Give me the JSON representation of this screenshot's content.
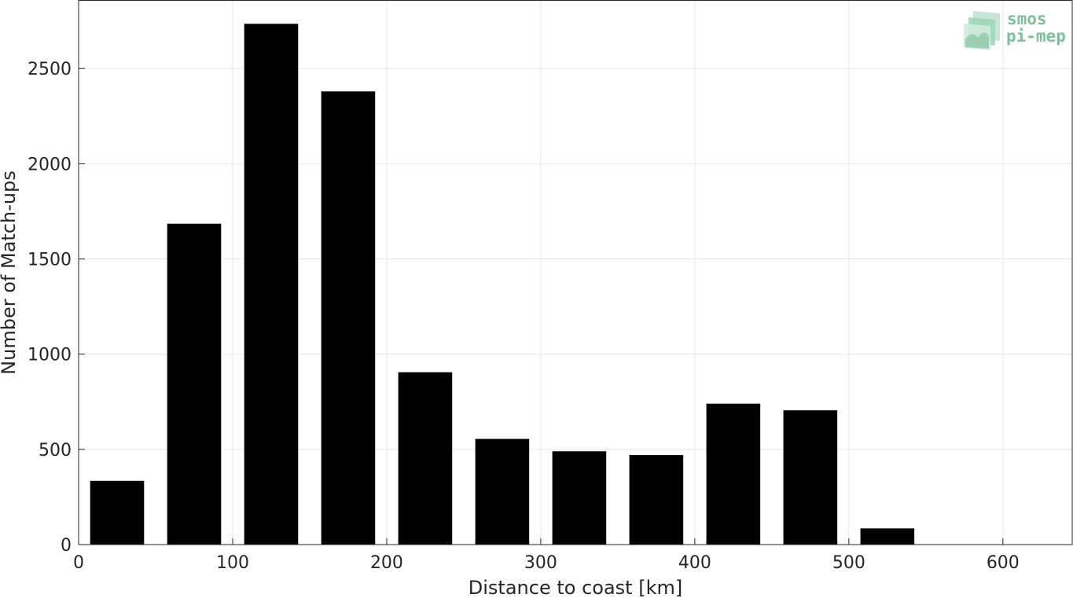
{
  "chart_data": {
    "type": "bar",
    "title": "",
    "xlabel": "Distance to coast [km]",
    "ylabel": "Number of Match-ups",
    "x": [
      25,
      75,
      125,
      175,
      225,
      275,
      325,
      375,
      425,
      475,
      525,
      575,
      625
    ],
    "values": [
      335,
      1685,
      2735,
      2380,
      905,
      555,
      490,
      470,
      740,
      705,
      85,
      0,
      0
    ],
    "xlim": [
      0,
      645
    ],
    "ylim": [
      0,
      2860
    ],
    "xticks": [
      0,
      100,
      200,
      300,
      400,
      500,
      600
    ],
    "yticks": [
      0,
      500,
      1000,
      1500,
      2000,
      2500
    ],
    "bar_width": 35,
    "grid": true,
    "bar_color": "#000000"
  },
  "logo": {
    "line1": "smos",
    "line2": "pi-mep",
    "color": "#7fbf9a"
  }
}
